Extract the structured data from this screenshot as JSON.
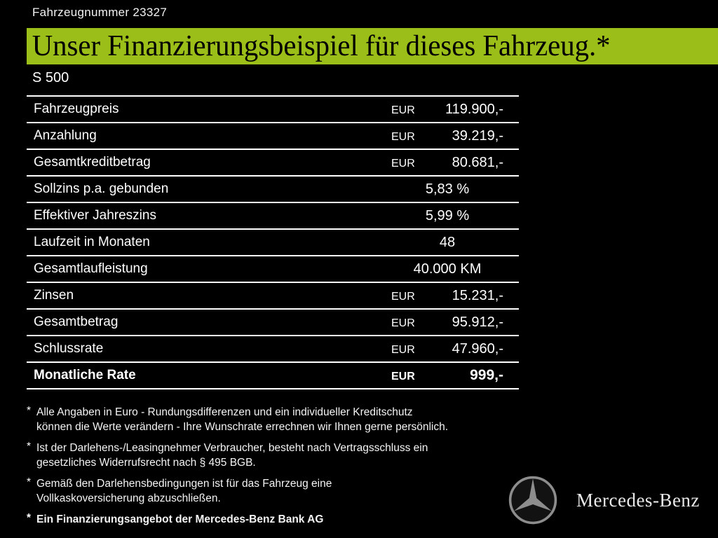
{
  "header": {
    "vehicle_number": "Fahrzeugnummer 23327",
    "title": "Unser Finanzierungsbeispiel für dieses Fahrzeug.*",
    "model": "S 500"
  },
  "table": {
    "rows": [
      {
        "label": "Fahrzeugpreis",
        "currency": "EUR",
        "value": "119.900,-",
        "bold": false
      },
      {
        "label": "Anzahlung",
        "currency": "EUR",
        "value": "39.219,-",
        "bold": false
      },
      {
        "label": "Gesamtkreditbetrag",
        "currency": "EUR",
        "value": "80.681,-",
        "bold": false
      },
      {
        "label": "Sollzins p.a. gebunden",
        "currency": "",
        "value": "5,83 %",
        "bold": false
      },
      {
        "label": "Effektiver Jahreszins",
        "currency": "",
        "value": "5,99 %",
        "bold": false
      },
      {
        "label": "Laufzeit in Monaten",
        "currency": "",
        "value": "48",
        "bold": false
      },
      {
        "label": "Gesamtlaufleistung",
        "currency": "",
        "value": "40.000 KM",
        "bold": false
      },
      {
        "label": "Zinsen",
        "currency": "EUR",
        "value": "15.231,-",
        "bold": false
      },
      {
        "label": "Gesamtbetrag",
        "currency": "EUR",
        "value": "95.912,-",
        "bold": false
      },
      {
        "label": "Schlussrate",
        "currency": "EUR",
        "value": "47.960,-",
        "bold": false
      },
      {
        "label": "Monatliche Rate",
        "currency": "EUR",
        "value": "999,-",
        "bold": true
      }
    ]
  },
  "footnotes": [
    {
      "marker": "*",
      "bold": false,
      "text": "Alle Angaben in Euro - Rundungsdifferenzen und ein individueller Kreditschutz\nkönnen die Werte verändern - Ihre Wunschrate errechnen wir Ihnen gerne persönlich."
    },
    {
      "marker": "*",
      "bold": false,
      "text": "Ist der Darlehens-/Leasingnehmer Verbraucher, besteht nach Vertragsschluss ein\ngesetzliches  Widerrufsrecht nach § 495 BGB."
    },
    {
      "marker": "*",
      "bold": false,
      "text": "Gemäß den Darlehensbedingungen ist für das Fahrzeug eine\nVollkaskoversicherung abzuschließen."
    },
    {
      "marker": "*",
      "bold": true,
      "text": "Ein Finanzierungsangebot der Mercedes-Benz Bank AG"
    }
  ],
  "brand": {
    "name": "Mercedes-Benz"
  },
  "colors": {
    "background": "#000000",
    "accent_green": "#9CBE19",
    "text": "#FFFFFF",
    "logo_gray": "#8D8D8D"
  }
}
